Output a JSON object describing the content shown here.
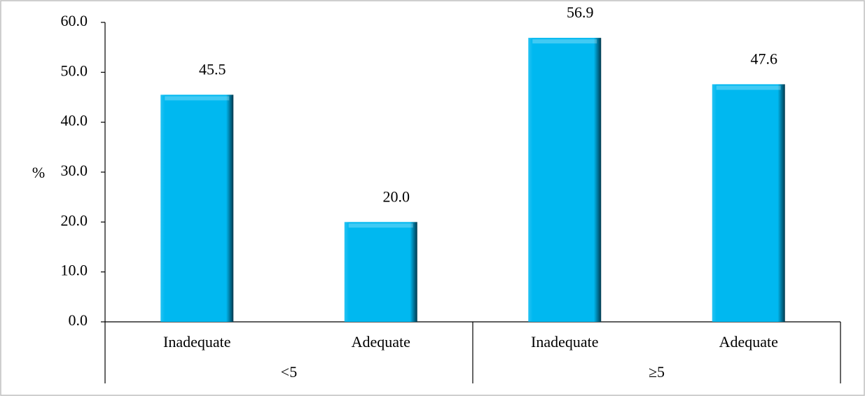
{
  "chart_data": {
    "type": "bar",
    "y_label": "%",
    "categories": [
      "Inadequate",
      "Adequate",
      "Inadequate",
      "Adequate"
    ],
    "groups": [
      "<5",
      "≥5"
    ],
    "values": [
      45.5,
      20.0,
      56.9,
      47.6
    ],
    "value_labels": [
      "45.5",
      "20.0",
      "56.9",
      "47.6"
    ],
    "color": "#00b8f0",
    "ylim": [
      0,
      60
    ],
    "yticks": [
      {
        "value": 0,
        "label": "0.0"
      },
      {
        "value": 10,
        "label": "10.0"
      },
      {
        "value": 20,
        "label": "20.0"
      },
      {
        "value": 30,
        "label": "30.0"
      },
      {
        "value": 40,
        "label": "40.0"
      },
      {
        "value": 50,
        "label": "50.0"
      },
      {
        "value": 60,
        "label": "60.0"
      }
    ],
    "grid": false
  }
}
